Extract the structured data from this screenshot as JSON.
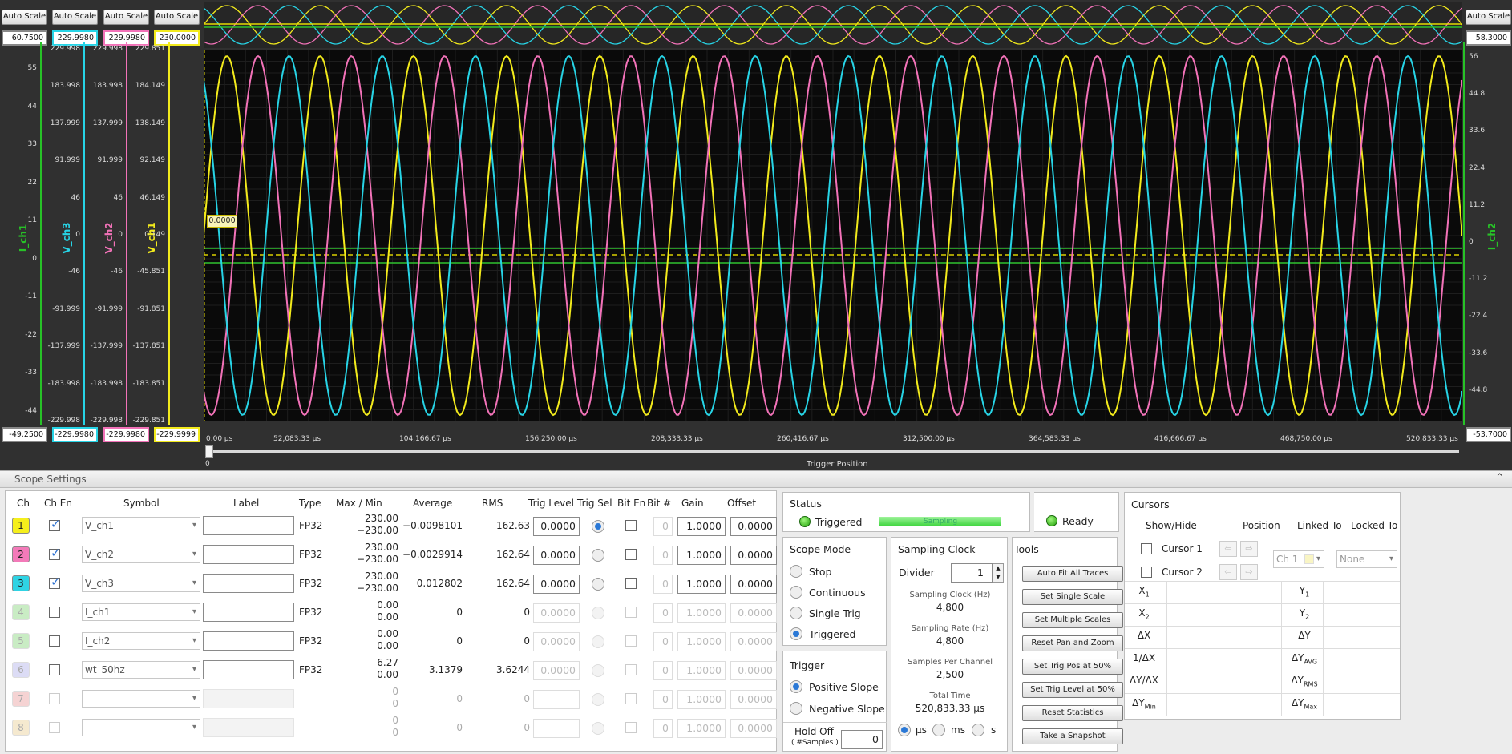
{
  "scope": {
    "auto_scale_label": "Auto Scale",
    "top_values": [
      "60.7500",
      "229.9980",
      "229.9980",
      "230.0000"
    ],
    "bottom_values": [
      "-49.2500",
      "-229.9980",
      "-229.9980",
      "-229.9999"
    ],
    "right_top_value": "58.3000",
    "right_bottom_value": "-53.7000",
    "trigger_flag": "0.0000",
    "trigger_position_label": "Trigger Position",
    "slider_zero": "0",
    "axes": [
      {
        "title": "I_ch1",
        "color": "#27c227",
        "ticks": [
          "55",
          "44",
          "33",
          "22",
          "11",
          "0",
          "-11",
          "-22",
          "-33",
          "-44"
        ]
      },
      {
        "title": "V_ch3",
        "color": "#27d4e6",
        "ticks": [
          "229.998",
          "183.998",
          "137.999",
          "91.999",
          "46",
          "0",
          "-46",
          "-91.999",
          "-137.999",
          "-183.998",
          "-229.998"
        ]
      },
      {
        "title": "V_ch2",
        "color": "#f272b8",
        "ticks": [
          "229.998",
          "183.998",
          "137.999",
          "91.999",
          "46",
          "0",
          "-46",
          "-91.999",
          "-137.999",
          "-183.998",
          "-229.998"
        ]
      },
      {
        "title": "V_ch1",
        "color": "#f2ea1c",
        "ticks": [
          "229.851",
          "184.149",
          "138.149",
          "92.149",
          "46.149",
          "0.149",
          "-45.851",
          "-91.851",
          "-137.851",
          "-183.851",
          "-229.851"
        ]
      }
    ],
    "right_axis": {
      "title": "I_ch2",
      "color": "#27c227",
      "ticks": [
        "56",
        "44.8",
        "33.6",
        "22.4",
        "11.2",
        "0",
        "-11.2",
        "-22.4",
        "-33.6",
        "-44.8"
      ]
    },
    "x_ticks": [
      "0.00   µs",
      "52,083.33   µs",
      "104,166.67   µs",
      "156,250.00   µs",
      "208,333.33   µs",
      "260,416.67   µs",
      "312,500.00   µs",
      "364,583.33   µs",
      "416,666.67   µs",
      "468,750.00   µs",
      "520,833.33   µs"
    ]
  },
  "settings": {
    "title": "Scope Settings",
    "headers": [
      "Ch",
      "Ch En",
      "Symbol",
      "Label",
      "Type",
      "Max / Min",
      "Average",
      "RMS",
      "Trig Level",
      "Trig Sel",
      "Bit En",
      "Bit #",
      "Gain",
      "Offset"
    ],
    "channels": [
      {
        "num": "1",
        "color": "#f5ef1c",
        "enabled": true,
        "symbol": "V_ch1",
        "type": "FP32",
        "max": "230.00",
        "min": "−230.00",
        "avg": "−0.0098101",
        "rms": "162.63",
        "trig": "0.0000",
        "trigsel": true,
        "bit": "0",
        "gain": "1.0000",
        "offset": "0.0000",
        "active": true
      },
      {
        "num": "2",
        "color": "#f37ab9",
        "enabled": true,
        "symbol": "V_ch2",
        "type": "FP32",
        "max": "230.00",
        "min": "−230.00",
        "avg": "−0.0029914",
        "rms": "162.64",
        "trig": "0.0000",
        "trigsel": false,
        "bit": "0",
        "gain": "1.0000",
        "offset": "0.0000",
        "active": true
      },
      {
        "num": "3",
        "color": "#2fd3e4",
        "enabled": true,
        "symbol": "V_ch3",
        "type": "FP32",
        "max": "230.00",
        "min": "−230.00",
        "avg": "0.012802",
        "rms": "162.64",
        "trig": "0.0000",
        "trigsel": false,
        "bit": "0",
        "gain": "1.0000",
        "offset": "0.0000",
        "active": true
      },
      {
        "num": "4",
        "color": "#c9ecc4",
        "enabled": false,
        "symbol": "I_ch1",
        "type": "FP32",
        "max": "0.00",
        "min": "0.00",
        "avg": "0",
        "rms": "0",
        "trig": "0.0000",
        "trigsel": false,
        "bit": "0",
        "gain": "1.0000",
        "offset": "0.0000",
        "active": false
      },
      {
        "num": "5",
        "color": "#c9ecc4",
        "enabled": false,
        "symbol": "I_ch2",
        "type": "FP32",
        "max": "0.00",
        "min": "0.00",
        "avg": "0",
        "rms": "0",
        "trig": "0.0000",
        "trigsel": false,
        "bit": "0",
        "gain": "1.0000",
        "offset": "0.0000",
        "active": false
      },
      {
        "num": "6",
        "color": "#dcdcf5",
        "enabled": false,
        "symbol": "wt_50hz",
        "type": "FP32",
        "max": "6.27",
        "min": "0.00",
        "avg": "3.1379",
        "rms": "3.6244",
        "trig": "0.0000",
        "trigsel": false,
        "bit": "0",
        "gain": "1.0000",
        "offset": "0.0000",
        "active": false
      },
      {
        "num": "7",
        "color": "#f5d3d3",
        "enabled": false,
        "symbol": "",
        "type": "",
        "max": "0",
        "min": "0",
        "avg": "0",
        "rms": "0",
        "trig": "",
        "trigsel": false,
        "bit": "0",
        "gain": "1.0000",
        "offset": "0.0000",
        "active": false
      },
      {
        "num": "8",
        "color": "#f5e9cf",
        "enabled": false,
        "symbol": "",
        "type": "",
        "max": "0",
        "min": "0",
        "avg": "0",
        "rms": "0",
        "trig": "",
        "trigsel": false,
        "bit": "0",
        "gain": "1.0000",
        "offset": "0.0000",
        "active": false
      }
    ]
  },
  "status": {
    "title": "Status",
    "triggered": "Triggered",
    "sampling": "Sampling",
    "ready": "Ready"
  },
  "scope_mode": {
    "title": "Scope Mode",
    "options": [
      "Stop",
      "Continuous",
      "Single Trig",
      "Triggered"
    ],
    "selected": "Triggered"
  },
  "trigger": {
    "title": "Trigger",
    "options": [
      "Positive Slope",
      "Negative Slope"
    ],
    "selected": "Positive Slope",
    "holdoff_label": "Hold Off",
    "holdoff_sub": "( #Samples )",
    "holdoff_value": "0"
  },
  "sampling_clock": {
    "title": "Sampling Clock",
    "divider_label": "Divider",
    "divider_value": "1",
    "clock_label": "Sampling Clock (Hz)",
    "clock_value": "4,800",
    "rate_label": "Sampling Rate (Hz)",
    "rate_value": "4,800",
    "spc_label": "Samples Per Channel",
    "spc_value": "2,500",
    "total_label": "Total Time",
    "total_value": "520,833.33 µs",
    "units": [
      "µs",
      "ms",
      "s"
    ],
    "unit_selected": "µs"
  },
  "tools": {
    "title": "Tools",
    "buttons": [
      "Auto Fit All Traces",
      "Set Single Scale",
      "Set Multiple Scales",
      "Reset Pan and Zoom",
      "Set Trig Pos at 50%",
      "Set Trig Level at 50%",
      "Reset Statistics",
      "Take a Snapshot"
    ]
  },
  "cursors": {
    "title": "Cursors",
    "headers": [
      "Show/Hide",
      "Position",
      "Linked To",
      "Locked To"
    ],
    "rows": [
      {
        "name": "Cursor 1",
        "linked": "Ch 1",
        "locked": "None"
      },
      {
        "name": "Cursor 2"
      }
    ],
    "left_labels": [
      "X",
      "X",
      "ΔX",
      "1/ΔX",
      "ΔY/ΔX",
      "ΔY"
    ],
    "left_subs": [
      "1",
      "2",
      "",
      "",
      "",
      "Min"
    ],
    "right_labels": [
      "Y",
      "Y",
      "ΔY",
      "ΔY",
      "ΔY",
      "ΔY"
    ],
    "right_subs": [
      "1",
      "2",
      "",
      "AVG",
      "RMS",
      "Max"
    ]
  }
}
